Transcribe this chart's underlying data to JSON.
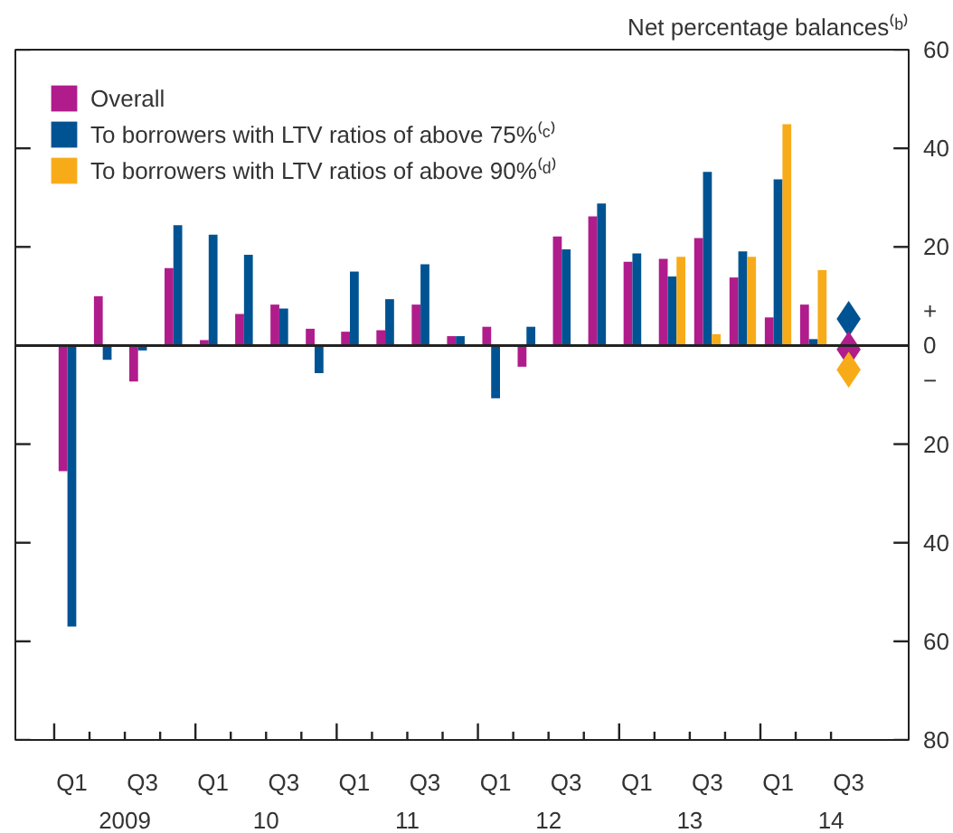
{
  "chart_data": {
    "type": "bar",
    "ylabel": "Net percentage balances⁽ᵇ⁾",
    "categories": [
      "Q1",
      null,
      "Q3",
      null,
      "Q1",
      null,
      "Q3",
      null,
      "Q1",
      null,
      "Q3",
      null,
      "Q1",
      null,
      "Q3",
      null,
      "Q1",
      null,
      "Q3",
      null,
      "Q1",
      null,
      "Q3"
    ],
    "series": [
      {
        "name": "Overall",
        "color": "#b01c8c",
        "values": [
          -25.5,
          10,
          -7.3,
          15.7,
          1.1,
          6.4,
          8.3,
          3.4,
          2.8,
          3.1,
          8.3,
          1.9,
          3.8,
          -4.3,
          22.1,
          26.2,
          17,
          17.6,
          21.8,
          13.8,
          5.7,
          8.3,
          null
        ]
      },
      {
        "name": "To borrowers with LTV ratios of above 75%⁽ᶜ⁾",
        "color": "#005392",
        "values": [
          -57,
          -2.9,
          -1,
          24.4,
          22.5,
          18.4,
          7.5,
          -5.6,
          15,
          9.4,
          16.5,
          1.9,
          -10.7,
          3.8,
          19.5,
          28.8,
          18.7,
          14,
          35.2,
          19.1,
          33.7,
          1.3,
          null
        ]
      },
      {
        "name": "To borrowers with LTV ratios of above 90%⁽ᵈ⁾",
        "color": "#f8ab19",
        "values": [
          null,
          null,
          null,
          null,
          null,
          null,
          null,
          null,
          null,
          null,
          null,
          null,
          null,
          null,
          null,
          null,
          null,
          18,
          2.3,
          18,
          44.9,
          15.3,
          null
        ]
      },
      {
        "type": "scatter",
        "color": "#005392",
        "values": [
          null,
          null,
          null,
          null,
          null,
          null,
          null,
          null,
          null,
          null,
          null,
          null,
          null,
          null,
          null,
          null,
          null,
          null,
          null,
          null,
          null,
          null,
          5.4
        ]
      },
      {
        "type": "scatter",
        "color": "#b01c8c",
        "values": [
          null,
          null,
          null,
          null,
          null,
          null,
          null,
          null,
          null,
          null,
          null,
          null,
          null,
          null,
          null,
          null,
          null,
          null,
          null,
          null,
          null,
          null,
          -0.8
        ]
      },
      {
        "type": "scatter",
        "color": "#f8ab19",
        "values": [
          null,
          null,
          null,
          null,
          null,
          null,
          null,
          null,
          null,
          null,
          null,
          null,
          null,
          null,
          null,
          null,
          null,
          null,
          null,
          null,
          null,
          null,
          -4.9
        ]
      }
    ],
    "marker": "diamond",
    "ylim": [
      -80,
      60
    ],
    "yticks": [
      60,
      40,
      20,
      0,
      {
        "value": -20,
        "label": "20"
      },
      {
        "value": -40,
        "label": "40"
      },
      {
        "value": -60,
        "label": "60"
      },
      {
        "value": -80,
        "label": "80"
      }
    ],
    "annotations": [
      "2009",
      "10",
      "11",
      "12",
      "13",
      "14",
      "+",
      "−"
    ],
    "legend": "top left"
  }
}
